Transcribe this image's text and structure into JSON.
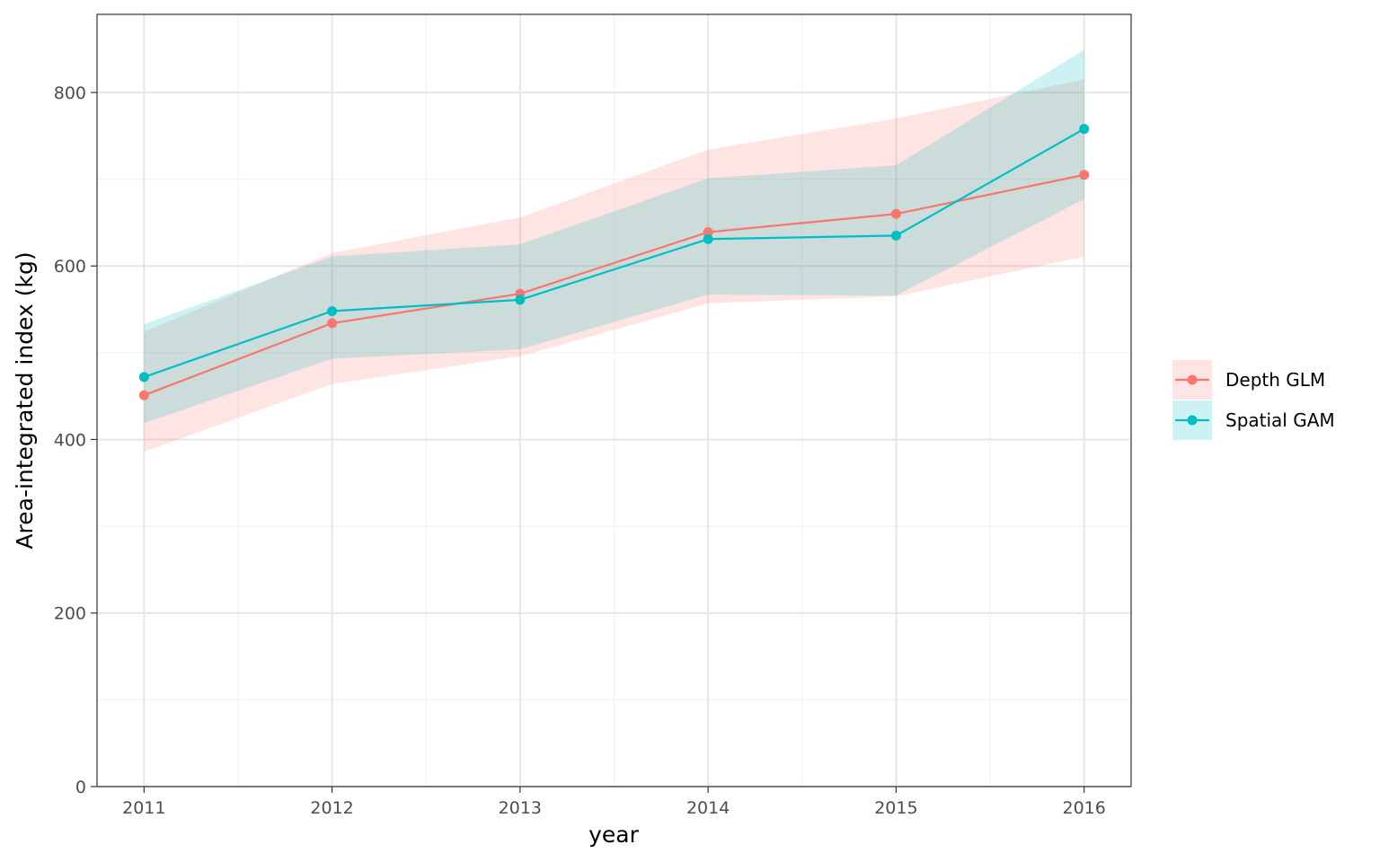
{
  "chart_data": {
    "type": "line",
    "title": "",
    "xlabel": "year",
    "ylabel": "Area-integrated index (kg)",
    "x": [
      2011,
      2012,
      2013,
      2014,
      2015,
      2016
    ],
    "xlim": [
      2010.75,
      2016.25
    ],
    "ylim": [
      0,
      890
    ],
    "y_ticks": [
      0,
      200,
      400,
      600,
      800
    ],
    "y_tick_labels": [
      "0",
      "200",
      "400",
      "600",
      "800"
    ],
    "x_tick_labels": [
      "2011",
      "2012",
      "2013",
      "2014",
      "2015",
      "2016"
    ],
    "grid": true,
    "legend_position": "right",
    "series": [
      {
        "name": "Depth GLM",
        "color": "#F8766D",
        "fill": "#F8766D",
        "values": [
          451,
          534,
          568,
          639,
          660,
          705
        ],
        "lower": [
          386,
          464,
          496,
          557,
          565,
          611
        ],
        "upper": [
          524,
          615,
          656,
          734,
          770,
          815
        ]
      },
      {
        "name": "Spatial GAM",
        "color": "#00BFC4",
        "fill": "#00BFC4",
        "values": [
          472,
          548,
          561,
          631,
          635,
          758
        ],
        "lower": [
          419,
          493,
          504,
          567,
          566,
          677
        ],
        "upper": [
          533,
          611,
          625,
          701,
          716,
          849
        ]
      }
    ]
  }
}
